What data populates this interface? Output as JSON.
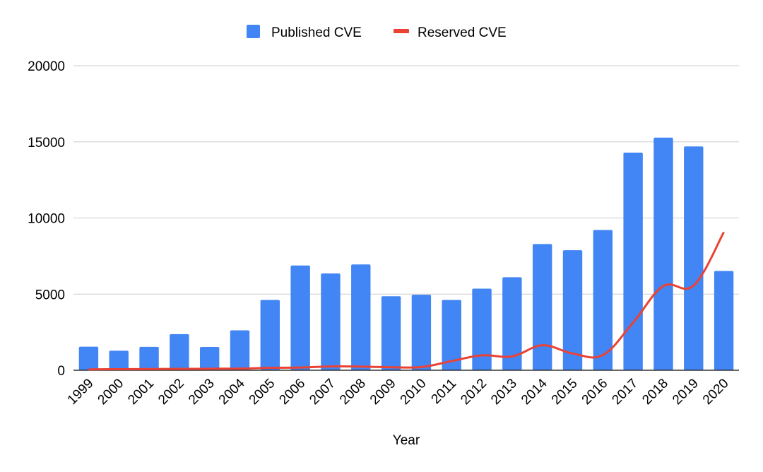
{
  "chart_data": {
    "type": "bar",
    "title": "",
    "xlabel": "Year",
    "ylabel": "",
    "ylim": [
      0,
      20000
    ],
    "yticks": [
      "0",
      "5000",
      "10000",
      "15000",
      "20000"
    ],
    "categories": [
      "1999",
      "2000",
      "2001",
      "2002",
      "2003",
      "2004",
      "2005",
      "2006",
      "2007",
      "2008",
      "2009",
      "2010",
      "2011",
      "2012",
      "2013",
      "2014",
      "2015",
      "2016",
      "2017",
      "2018",
      "2019",
      "2020"
    ],
    "series": [
      {
        "name": "Published CVE",
        "type": "bar",
        "color": "#4285f4",
        "values": [
          1550,
          1280,
          1540,
          2370,
          1530,
          2620,
          4620,
          6880,
          6360,
          6950,
          4860,
          4960,
          4620,
          5360,
          6110,
          8290,
          7880,
          9210,
          14290,
          15280,
          14700,
          6520
        ]
      },
      {
        "name": "Reserved CVE",
        "type": "line",
        "color": "#ea4335",
        "values": [
          60,
          70,
          80,
          90,
          100,
          110,
          160,
          180,
          250,
          240,
          200,
          210,
          600,
          980,
          910,
          1640,
          1100,
          1000,
          3130,
          5530,
          5560,
          9070
        ]
      }
    ],
    "grid": true,
    "legend_position": "top"
  }
}
